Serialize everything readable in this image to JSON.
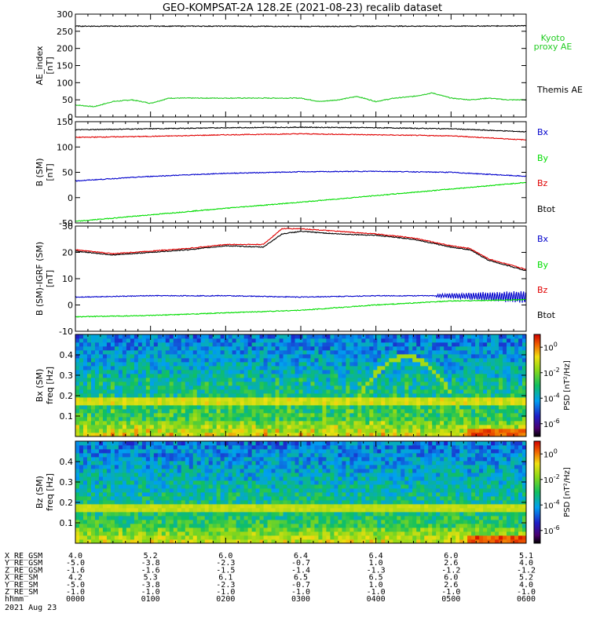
{
  "title": "GEO-KOMPSAT-2A 128.2E (2021-08-23) recalib dataset",
  "colors": {
    "black": "#000000",
    "red": "#e00000",
    "blue": "#0000cc",
    "green": "#00dd00",
    "ae_green": "#22cc22"
  },
  "chart_data": [
    {
      "type": "line",
      "ylabel": "AE_index",
      "yunit": "[nT]",
      "ylim": [
        0,
        300
      ],
      "yticks": [
        "0",
        "50",
        "100",
        "150",
        "200",
        "250",
        "300"
      ],
      "ytick_values": [
        0,
        50,
        100,
        150,
        200,
        250,
        300
      ],
      "legend": [
        "Kyoto",
        "proxy AE",
        "Themis AE"
      ],
      "series": [
        {
          "name": "Kyoto proxy AE",
          "color": "#22cc22",
          "x": [
            0,
            0.25,
            0.5,
            0.75,
            1,
            1.25,
            1.5,
            1.75,
            2,
            2.25,
            2.5,
            2.75,
            3,
            3.25,
            3.5,
            3.75,
            4,
            4.25,
            4.5,
            4.75,
            5,
            5.25,
            5.5,
            5.75,
            6
          ],
          "y": [
            35,
            30,
            45,
            50,
            40,
            55,
            55,
            55,
            55,
            55,
            55,
            55,
            55,
            45,
            50,
            60,
            45,
            55,
            60,
            70,
            55,
            50,
            55,
            50,
            50
          ]
        },
        {
          "name": "Themis AE",
          "color": "#000000",
          "x": [
            0,
            1,
            2,
            3,
            4,
            5,
            6
          ],
          "y": [
            265,
            265,
            265,
            264,
            265,
            265,
            266
          ]
        }
      ]
    },
    {
      "type": "line",
      "ylabel": "B (SM)",
      "yunit": "[nT]",
      "ylim": [
        -50,
        150
      ],
      "yticks": [
        "-50",
        "0",
        "50",
        "100",
        "150"
      ],
      "ytick_values": [
        -50,
        0,
        50,
        100,
        150
      ],
      "legend": [
        "Bx",
        "By",
        "Bz",
        "Btot"
      ],
      "series": [
        {
          "name": "Btot",
          "color": "#000000",
          "x": [
            0,
            1,
            2,
            3,
            4,
            5,
            6
          ],
          "y": [
            134,
            136,
            138,
            139,
            138,
            136,
            130
          ]
        },
        {
          "name": "Bz",
          "color": "#e00000",
          "x": [
            0,
            1,
            2,
            3,
            4,
            5,
            6
          ],
          "y": [
            119,
            121,
            124,
            126,
            124,
            122,
            114
          ]
        },
        {
          "name": "Bx",
          "color": "#0000cc",
          "x": [
            0,
            1,
            2,
            3,
            4,
            5,
            6
          ],
          "y": [
            33,
            42,
            48,
            51,
            52,
            50,
            42
          ]
        },
        {
          "name": "By",
          "color": "#00dd00",
          "x": [
            0,
            1,
            2,
            3,
            4,
            5,
            6
          ],
          "y": [
            -47,
            -34,
            -21,
            -9,
            4,
            17,
            30
          ]
        }
      ]
    },
    {
      "type": "line",
      "ylabel": "B (SM)-IGRF (SM)",
      "yunit": "[nT]",
      "ylim": [
        -10,
        30
      ],
      "yticks": [
        "-10",
        "0",
        "10",
        "20",
        "30"
      ],
      "ytick_values": [
        -10,
        0,
        10,
        20,
        30
      ],
      "legend": [
        "Bx",
        "By",
        "Bz",
        "Btot"
      ],
      "series": [
        {
          "name": "Btot",
          "color": "#000000",
          "x": [
            0,
            0.5,
            1,
            1.5,
            2,
            2.5,
            2.75,
            3,
            3.5,
            4,
            4.5,
            5,
            5.25,
            5.5,
            5.75,
            6
          ],
          "y": [
            20.5,
            19,
            20,
            21,
            22.5,
            22,
            27,
            28,
            27,
            26.5,
            25,
            22,
            21,
            17,
            15,
            13
          ]
        },
        {
          "name": "Bz",
          "color": "#e00000",
          "x": [
            0,
            0.5,
            1,
            1.5,
            2,
            2.5,
            2.75,
            3,
            3.5,
            4,
            4.5,
            5,
            5.25,
            5.5,
            5.75,
            6
          ],
          "y": [
            21,
            19.5,
            20.5,
            21.5,
            23,
            23,
            29,
            29,
            28,
            27,
            25.5,
            22.5,
            21.5,
            17.5,
            15.5,
            13.5
          ]
        },
        {
          "name": "Bx",
          "color": "#0000cc",
          "x": [
            0,
            1,
            2,
            3,
            4,
            5,
            6
          ],
          "y": [
            3,
            3.5,
            3.5,
            3,
            3.5,
            3.5,
            3
          ]
        },
        {
          "name": "By",
          "color": "#00dd00",
          "x": [
            0,
            1,
            2,
            3,
            4,
            5,
            6
          ],
          "y": [
            -4.5,
            -4,
            -3,
            -2,
            0,
            1.5,
            2
          ]
        }
      ]
    },
    {
      "type": "heatmap",
      "ylabel": "Bx (SM)",
      "yunit": "freq [Hz]",
      "ylim": [
        0,
        0.5
      ],
      "yticks": [
        "0.1",
        "0.2",
        "0.3",
        "0.4"
      ],
      "ytick_values": [
        0.1,
        0.2,
        0.3,
        0.4
      ],
      "colorbar_label": "PSD [nT²/Hz]",
      "colorbar_ticks": [
        {
          "base": "10",
          "exp": "0"
        },
        {
          "base": "10",
          "exp": "-2"
        },
        {
          "base": "10",
          "exp": "-4"
        },
        {
          "base": "10",
          "exp": "-6"
        }
      ],
      "colorbar_range_log10": [
        -7,
        1
      ]
    },
    {
      "type": "heatmap",
      "ylabel": "Bz (SM)",
      "yunit": "freq [Hz]",
      "ylim": [
        0,
        0.5
      ],
      "yticks": [
        "0.1",
        "0.2",
        "0.3",
        "0.4"
      ],
      "ytick_values": [
        0.1,
        0.2,
        0.3,
        0.4
      ],
      "colorbar_label": "PSD [nT²/Hz]",
      "colorbar_ticks": [
        {
          "base": "10",
          "exp": "0"
        },
        {
          "base": "10",
          "exp": "-2"
        },
        {
          "base": "10",
          "exp": "-4"
        },
        {
          "base": "10",
          "exp": "-6"
        }
      ],
      "colorbar_range_log10": [
        -7,
        1
      ]
    }
  ],
  "xaxis": {
    "ticks_hours": [
      0,
      1,
      2,
      3,
      4,
      5,
      6
    ],
    "row_labels": [
      "X_RE_GSM",
      "Y_RE_GSM",
      "Z_RE_GSM",
      "X_RE_SM",
      "Y_RE_SM",
      "Z_RE_SM",
      "hhmm"
    ],
    "rows": [
      [
        "4.0",
        "5.2",
        "6.0",
        "6.4",
        "6.4",
        "6.0",
        "5.1"
      ],
      [
        "-5.0",
        "-3.8",
        "-2.3",
        "-0.7",
        "1.0",
        "2.6",
        "4.0"
      ],
      [
        "-1.6",
        "-1.6",
        "-1.5",
        "-1.4",
        "-1.3",
        "-1.2",
        "-1.2"
      ],
      [
        "4.2",
        "5.3",
        "6.1",
        "6.5",
        "6.5",
        "6.0",
        "5.2"
      ],
      [
        "-5.0",
        "-3.8",
        "-2.3",
        "-0.7",
        "1.0",
        "2.6",
        "4.0"
      ],
      [
        "-1.0",
        "-1.0",
        "-1.0",
        "-1.0",
        "-1.0",
        "-1.0",
        "-1.0"
      ],
      [
        "0000",
        "0100",
        "0200",
        "0300",
        "0400",
        "0500",
        "0600"
      ]
    ],
    "date": "2021 Aug 23"
  }
}
